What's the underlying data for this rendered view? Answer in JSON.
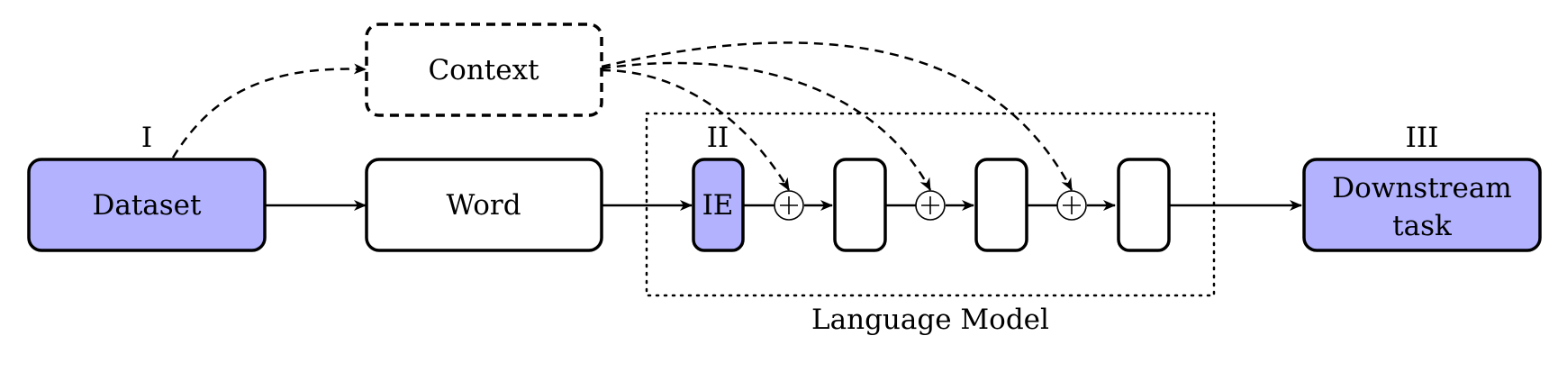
{
  "diagram": {
    "colors": {
      "highlight_fill": "#b2b2ff",
      "plain_fill": "#ffffff",
      "stroke": "#000000"
    },
    "stage_labels": {
      "stage_1": "I",
      "stage_2": "II",
      "stage_3": "III"
    },
    "nodes": {
      "dataset": "Dataset",
      "context": "Context",
      "word": "Word",
      "ie": "IE",
      "layer_1": "",
      "layer_2": "",
      "layer_3": "",
      "downstream_line1": "Downstream",
      "downstream_line2": "task"
    },
    "group_label": "Language Model",
    "operator_symbol": "plus-in-circle"
  }
}
